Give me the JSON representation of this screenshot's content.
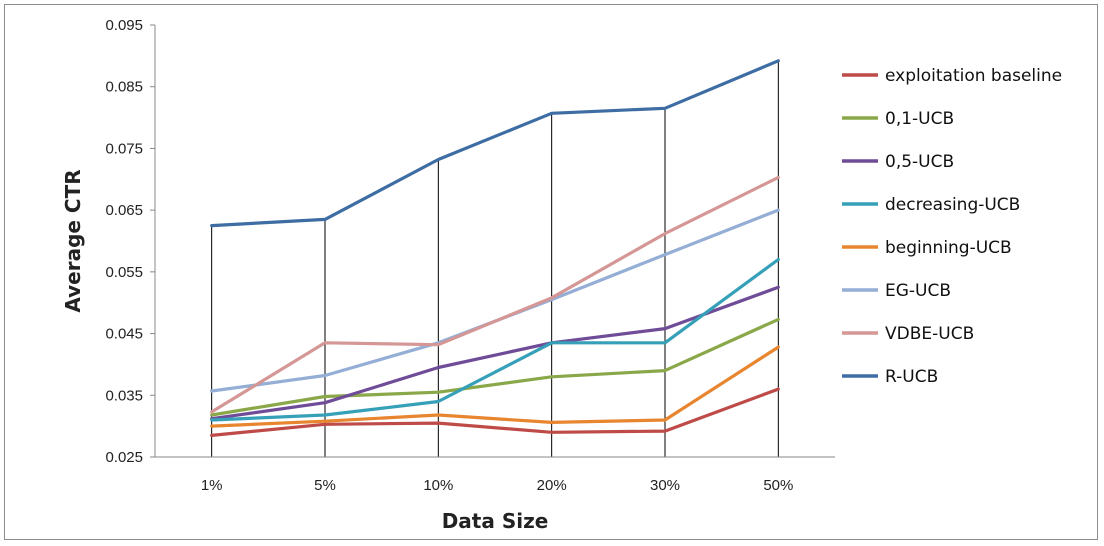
{
  "chart_data": {
    "type": "line",
    "title": "",
    "xlabel": "Data Size",
    "ylabel": "Average CTR",
    "categories": [
      "1%",
      "5%",
      "10%",
      "20%",
      "30%",
      "50%"
    ],
    "ylim": [
      0.025,
      0.095
    ],
    "yticks": [
      "0.025",
      "0.035",
      "0.045",
      "0.055",
      "0.065",
      "0.075",
      "0.085",
      "0.095"
    ],
    "grid": "vertical drop lines at each category",
    "legend_position": "right",
    "series": [
      {
        "name": "exploitation baseline",
        "color": "#be4b48",
        "values": [
          0.0285,
          0.0303,
          0.0305,
          0.029,
          0.0292,
          0.036
        ]
      },
      {
        "name": "0,1-UCB",
        "color": "#8aa84a",
        "values": [
          0.0318,
          0.0348,
          0.0355,
          0.038,
          0.039,
          0.0473
        ]
      },
      {
        "name": "0,5-UCB",
        "color": "#6f4c97",
        "values": [
          0.0312,
          0.0338,
          0.0395,
          0.0435,
          0.0458,
          0.0525
        ]
      },
      {
        "name": "decreasing-UCB",
        "color": "#36a0b9",
        "values": [
          0.031,
          0.0318,
          0.034,
          0.0435,
          0.0435,
          0.057
        ]
      },
      {
        "name": "beginning-UCB",
        "color": "#e8852f",
        "values": [
          0.03,
          0.0308,
          0.0318,
          0.0306,
          0.031,
          0.0428
        ]
      },
      {
        "name": "EG-UCB",
        "color": "#94aed5",
        "values": [
          0.0357,
          0.0382,
          0.0435,
          0.0505,
          0.0578,
          0.065
        ]
      },
      {
        "name": "VDBE-UCB",
        "color": "#d49795",
        "values": [
          0.0323,
          0.0435,
          0.0432,
          0.0508,
          0.0612,
          0.0703
        ]
      },
      {
        "name": "R-UCB",
        "color": "#3d6da3",
        "values": [
          0.0625,
          0.0635,
          0.0732,
          0.0807,
          0.0815,
          0.0892
        ]
      }
    ]
  }
}
